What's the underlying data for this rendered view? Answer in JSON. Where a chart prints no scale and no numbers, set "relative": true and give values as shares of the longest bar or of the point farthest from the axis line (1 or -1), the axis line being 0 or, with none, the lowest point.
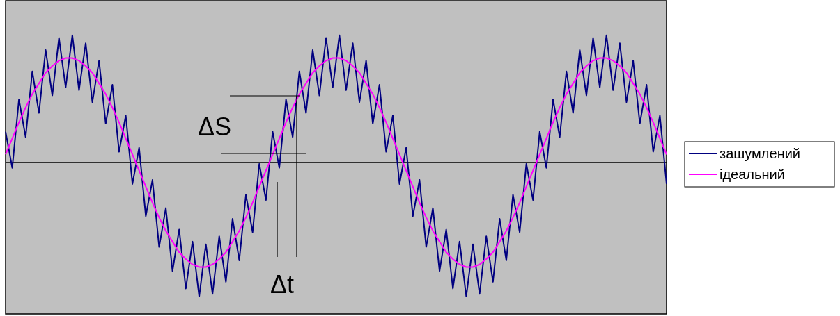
{
  "chart_data": {
    "type": "line",
    "relative": true,
    "legend": "right",
    "categories": [
      null,
      null,
      null,
      null,
      null,
      null,
      null,
      null,
      null,
      null,
      null,
      null,
      null,
      null,
      null,
      null,
      null,
      null,
      null,
      null,
      null,
      null,
      null,
      null,
      null,
      null,
      null,
      null,
      null,
      null,
      null,
      null,
      null,
      null,
      null,
      null,
      null,
      null,
      null,
      null,
      null,
      null,
      null,
      null,
      null,
      null,
      null,
      null,
      null,
      null,
      null,
      null,
      null,
      null,
      null,
      null,
      null,
      null,
      null,
      null,
      null,
      null,
      null,
      null,
      null,
      null,
      null,
      null,
      null,
      null,
      null,
      null,
      null,
      null,
      null,
      null,
      null,
      null,
      null,
      null,
      null,
      null,
      null,
      null,
      null,
      null,
      null,
      null,
      null,
      null,
      null,
      null,
      null,
      null,
      null,
      null,
      null,
      null,
      null,
      null
    ],
    "series": [
      {
        "name": "зашумлений",
        "color": "#000080",
        "values": [
          0.23,
          -0.04,
          0.47,
          0.19,
          0.68,
          0.37,
          0.84,
          0.5,
          0.93,
          0.56,
          0.95,
          0.54,
          0.89,
          0.45,
          0.76,
          0.29,
          0.58,
          0.08,
          0.35,
          -0.16,
          0.11,
          -0.4,
          -0.13,
          -0.63,
          -0.34,
          -0.81,
          -0.5,
          -0.94,
          -0.59,
          -1.0,
          -0.61,
          -0.98,
          -0.55,
          -0.89,
          -0.42,
          -0.73,
          -0.24,
          -0.52,
          -0.01,
          -0.28,
          0.23,
          -0.04,
          0.47,
          0.19,
          0.68,
          0.37,
          0.84,
          0.5,
          0.93,
          0.56,
          0.95,
          0.54,
          0.89,
          0.45,
          0.76,
          0.29,
          0.58,
          0.08,
          0.35,
          -0.16,
          0.11,
          -0.4,
          -0.13,
          -0.63,
          -0.34,
          -0.81,
          -0.5,
          -0.94,
          -0.59,
          -1.0,
          -0.61,
          -0.98,
          -0.55,
          -0.89,
          -0.42,
          -0.73,
          -0.24,
          -0.52,
          -0.01,
          -0.28,
          0.23,
          -0.04,
          0.47,
          0.19,
          0.68,
          0.37,
          0.84,
          0.5,
          0.93,
          0.56,
          0.95,
          0.54,
          0.89,
          0.45,
          0.76,
          0.29,
          0.58,
          0.08,
          0.35,
          -0.16
        ]
      },
      {
        "name": "ідеальний",
        "color": "#ff00ff",
        "values": [
          0.06,
          0.18,
          0.3,
          0.41,
          0.51,
          0.59,
          0.67,
          0.72,
          0.76,
          0.78,
          0.78,
          0.76,
          0.72,
          0.67,
          0.59,
          0.51,
          0.41,
          0.3,
          0.18,
          0.06,
          -0.06,
          -0.18,
          -0.3,
          -0.41,
          -0.51,
          -0.59,
          -0.67,
          -0.72,
          -0.76,
          -0.78,
          -0.78,
          -0.76,
          -0.72,
          -0.67,
          -0.59,
          -0.51,
          -0.41,
          -0.3,
          -0.18,
          -0.06,
          0.06,
          0.18,
          0.3,
          0.41,
          0.51,
          0.59,
          0.67,
          0.72,
          0.76,
          0.78,
          0.78,
          0.76,
          0.72,
          0.67,
          0.59,
          0.51,
          0.41,
          0.3,
          0.18,
          0.06,
          -0.06,
          -0.18,
          -0.3,
          -0.41,
          -0.51,
          -0.59,
          -0.67,
          -0.72,
          -0.76,
          -0.78,
          -0.78,
          -0.76,
          -0.72,
          -0.67,
          -0.59,
          -0.51,
          -0.41,
          -0.3,
          -0.18,
          -0.06,
          0.06,
          0.18,
          0.3,
          0.41,
          0.51,
          0.59,
          0.67,
          0.72,
          0.76,
          0.78,
          0.78,
          0.76,
          0.72,
          0.67,
          0.59,
          0.51,
          0.41,
          0.3,
          0.18,
          0.06
        ]
      }
    ],
    "annotations": [
      "ΔS",
      "Δt"
    ]
  }
}
